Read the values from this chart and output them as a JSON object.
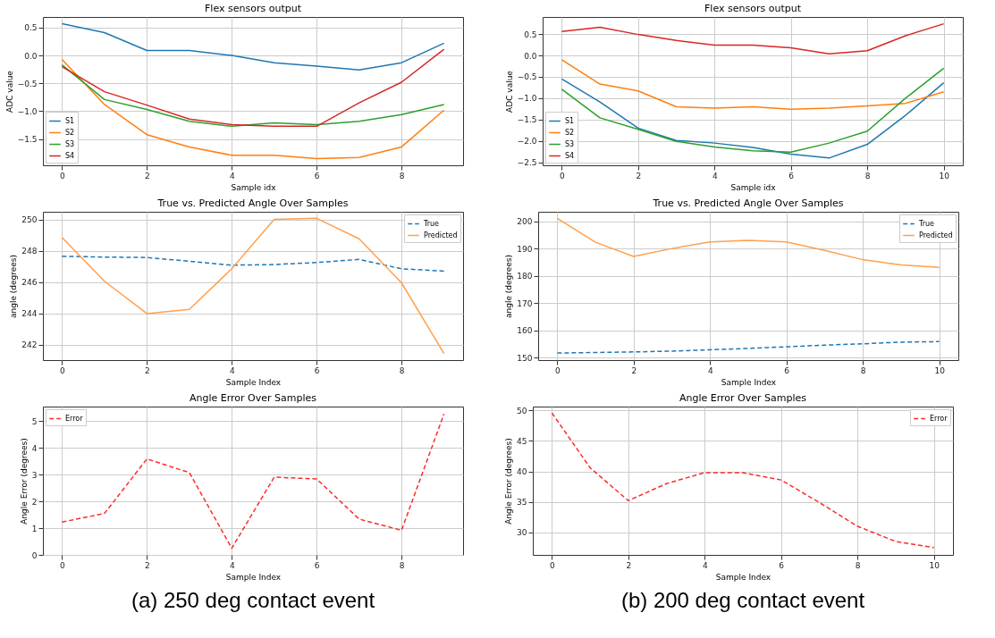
{
  "chart_data": [
    {
      "type": "line",
      "title": "Flex sensors output",
      "xlabel": "Sample idx",
      "ylabel": "ADC value",
      "x": [
        0,
        1,
        2,
        3,
        4,
        5,
        6,
        7,
        8,
        9
      ],
      "xlim": [
        -0.45,
        9.45
      ],
      "xticks": [
        0,
        2,
        4,
        6,
        8
      ],
      "ylim": [
        -1.97,
        0.69
      ],
      "yticks": [
        {
          "value": -1.5,
          "label": "−1.5"
        },
        {
          "value": -1.0,
          "label": "−1.0"
        },
        {
          "value": -0.5,
          "label": "−0.5"
        },
        {
          "value": 0.0,
          "label": "0.0"
        },
        0.5
      ],
      "grid": true,
      "legend": "bottom left",
      "series": [
        {
          "name": "S1",
          "color": "#1f77b4",
          "values": [
            0.57,
            0.41,
            0.09,
            0.09,
            0.0,
            -0.13,
            -0.19,
            -0.26,
            -0.13,
            0.22
          ]
        },
        {
          "name": "S2",
          "color": "#ff7f0e",
          "values": [
            -0.07,
            -0.88,
            -1.42,
            -1.64,
            -1.79,
            -1.79,
            -1.85,
            -1.83,
            -1.64,
            -0.98
          ]
        },
        {
          "name": "S3",
          "color": "#2ca02c",
          "values": [
            -0.17,
            -0.79,
            -0.97,
            -1.18,
            -1.27,
            -1.21,
            -1.24,
            -1.18,
            -1.06,
            -0.88
          ]
        },
        {
          "name": "S4",
          "color": "#d62728",
          "values": [
            -0.2,
            -0.65,
            -0.89,
            -1.14,
            -1.24,
            -1.27,
            -1.27,
            -0.85,
            -0.48,
            0.11
          ]
        }
      ]
    },
    {
      "type": "line",
      "title": "Flex sensors output",
      "xlabel": "Sample idx",
      "ylabel": "ADC value",
      "x": [
        0,
        1,
        2,
        3,
        4,
        5,
        6,
        7,
        8,
        9,
        10
      ],
      "xlim": [
        -0.5,
        10.5
      ],
      "xticks": [
        0,
        2,
        4,
        6,
        8,
        10
      ],
      "ylim": [
        -2.57,
        0.9
      ],
      "yticks": [
        {
          "value": -2.5,
          "label": "−2.5"
        },
        {
          "value": -2.0,
          "label": "−2.0"
        },
        {
          "value": -1.5,
          "label": "−1.5"
        },
        {
          "value": -1.0,
          "label": "−1.0"
        },
        {
          "value": -0.5,
          "label": "−0.5"
        },
        {
          "value": 0.0,
          "label": "0.0"
        },
        0.5
      ],
      "grid": true,
      "legend": "bottom left",
      "series": [
        {
          "name": "S1",
          "color": "#1f77b4",
          "values": [
            -0.55,
            -1.09,
            -1.7,
            -1.99,
            -2.05,
            -2.15,
            -2.31,
            -2.4,
            -2.08,
            -1.4,
            -0.64
          ]
        },
        {
          "name": "S2",
          "color": "#ff7f0e",
          "values": [
            -0.1,
            -0.67,
            -0.83,
            -1.2,
            -1.23,
            -1.2,
            -1.26,
            -1.23,
            -1.18,
            -1.12,
            -0.85
          ]
        },
        {
          "name": "S3",
          "color": "#2ca02c",
          "values": [
            -0.79,
            -1.46,
            -1.73,
            -2.01,
            -2.14,
            -2.23,
            -2.26,
            -2.05,
            -1.77,
            -1.0,
            -0.3
          ]
        },
        {
          "name": "S4",
          "color": "#d62728",
          "values": [
            0.56,
            0.66,
            0.49,
            0.35,
            0.24,
            0.24,
            0.18,
            0.04,
            0.11,
            0.46,
            0.74
          ]
        }
      ]
    },
    {
      "type": "line",
      "title": "True vs. Predicted Angle Over Samples",
      "xlabel": "Sample Index",
      "ylabel": "angle (degrees)",
      "x": [
        0,
        1,
        2,
        3,
        4,
        5,
        6,
        7,
        8,
        9
      ],
      "xlim": [
        -0.45,
        9.45
      ],
      "xticks": [
        0,
        2,
        4,
        6,
        8
      ],
      "ylim": [
        241.0,
        250.5
      ],
      "yticks": [
        242,
        244,
        246,
        248,
        250
      ],
      "grid": true,
      "legend": "top right",
      "series": [
        {
          "name": "True",
          "color": "#1f77b4",
          "line_style": "dashed",
          "values": [
            247.65,
            247.6,
            247.57,
            247.33,
            247.08,
            247.12,
            247.25,
            247.45,
            246.85,
            246.7
          ]
        },
        {
          "name": "Predicted",
          "color": "#ffa04d",
          "line_style": "solid",
          "values": [
            248.85,
            246.05,
            243.98,
            244.25,
            246.85,
            250.02,
            250.08,
            248.77,
            245.95,
            241.42
          ]
        }
      ]
    },
    {
      "type": "line",
      "title": "True vs. Predicted Angle Over Samples",
      "xlabel": "Sample Index",
      "ylabel": "angle (degrees)",
      "x": [
        0,
        1,
        2,
        3,
        4,
        5,
        6,
        7,
        8,
        9,
        10
      ],
      "xlim": [
        -0.5,
        10.5
      ],
      "xticks": [
        0,
        2,
        4,
        6,
        8,
        10
      ],
      "ylim": [
        149.1,
        203.6
      ],
      "yticks": [
        150,
        160,
        170,
        180,
        190,
        200
      ],
      "grid": true,
      "legend": "top right",
      "series": [
        {
          "name": "True",
          "color": "#1f77b4",
          "line_style": "dashed",
          "values": [
            151.7,
            151.9,
            152.1,
            152.4,
            152.9,
            153.4,
            154.0,
            154.6,
            155.1,
            155.7,
            155.9
          ]
        },
        {
          "name": "Predicted",
          "color": "#ffa04d",
          "line_style": "solid",
          "values": [
            201.2,
            192.4,
            187.2,
            190.1,
            192.5,
            193.1,
            192.5,
            189.4,
            186.0,
            184.1,
            183.2
          ]
        }
      ]
    },
    {
      "type": "line",
      "title": "Angle Error Over Samples",
      "xlabel": "Sample Index",
      "ylabel": "Angle Error (degrees)",
      "x": [
        0,
        1,
        2,
        3,
        4,
        5,
        6,
        7,
        8,
        9
      ],
      "xlim": [
        -0.45,
        9.45
      ],
      "xticks": [
        0,
        2,
        4,
        6,
        8
      ],
      "ylim": [
        0,
        5.55
      ],
      "yticks": [
        0,
        1,
        2,
        3,
        4,
        5
      ],
      "grid": true,
      "legend": "top left",
      "annotations": [
        "(a) 250 deg contact event"
      ],
      "series": [
        {
          "name": "Error",
          "color": "#ff2a2a",
          "line_style": "dashed",
          "values": [
            1.23,
            1.55,
            3.59,
            3.08,
            0.25,
            2.91,
            2.84,
            1.34,
            0.92,
            5.27
          ]
        }
      ]
    },
    {
      "type": "line",
      "title": "Angle Error Over Samples",
      "xlabel": "Sample Index",
      "ylabel": "Angle Error (degrees)",
      "x": [
        0,
        1,
        2,
        3,
        4,
        5,
        6,
        7,
        8,
        9,
        10
      ],
      "xlim": [
        -0.5,
        10.5
      ],
      "xticks": [
        0,
        2,
        4,
        6,
        8,
        10
      ],
      "ylim": [
        26.3,
        50.64
      ],
      "yticks": [
        30,
        35,
        40,
        45,
        50
      ],
      "grid": true,
      "legend": "top right",
      "annotations": [
        "(b) 200 deg contact event"
      ],
      "series": [
        {
          "name": "Error",
          "color": "#ff2a2a",
          "line_style": "dashed",
          "values": [
            49.6,
            40.6,
            35.2,
            38.0,
            39.8,
            39.8,
            38.6,
            34.9,
            31.0,
            28.5,
            27.5
          ]
        }
      ]
    }
  ]
}
